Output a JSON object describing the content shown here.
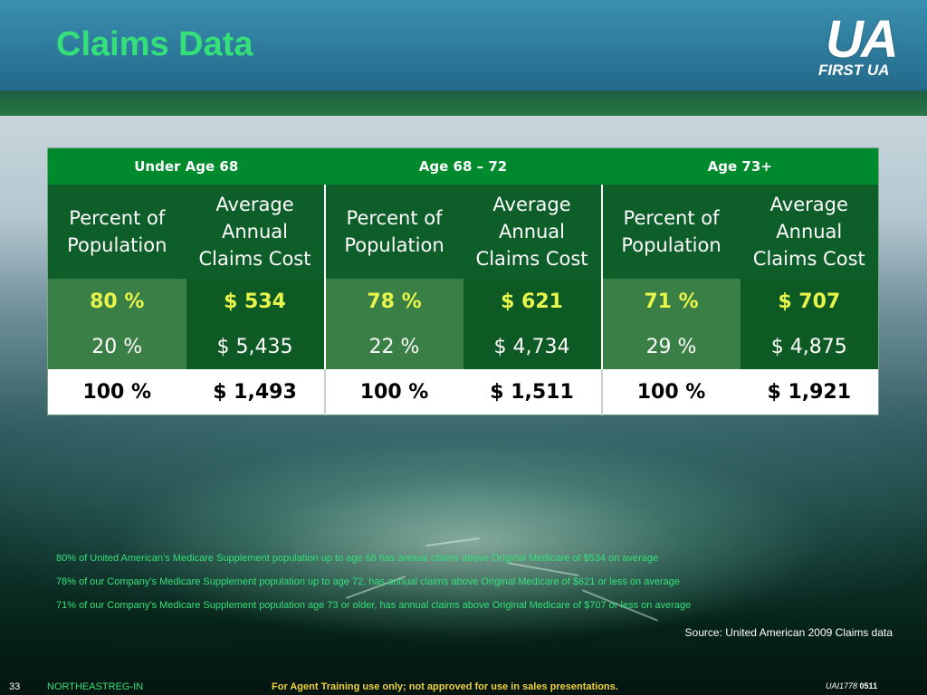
{
  "slide": {
    "title": "Claims Data",
    "logo": {
      "main": "UA",
      "sub": "FIRST UA"
    }
  },
  "table": {
    "groups": [
      "Under Age 68",
      "Age 68 – 72",
      "Age 73+"
    ],
    "subheaders": {
      "percent": [
        "Percent of",
        "Population"
      ],
      "cost": [
        "Average",
        "Annual",
        "Claims Cost"
      ]
    },
    "rows": [
      {
        "cells": [
          "80 %",
          "$ 534",
          "78 %",
          "$ 621",
          "71 %",
          "$ 707"
        ]
      },
      {
        "cells": [
          "20 %",
          "$ 5,435",
          "22 %",
          "$ 4,734",
          "29 %",
          "$ 4,875"
        ]
      },
      {
        "cells": [
          "100 %",
          "$ 1,493",
          "100 %",
          "$ 1,511",
          "100 %",
          "$ 1,921"
        ]
      }
    ]
  },
  "notes": [
    "80% of United American’s Medicare Supplement population up to age 68 has annual claims above Original Medicare of $534 on average",
    "78% of our Company’s Medicare Supplement population up to age 72, has annual claims above Original Medicare of $621 or less on average",
    "71% of our Company’s Medicare Supplement population age 73 or older, has annual claims above Original Medicare of $707 or less on average"
  ],
  "source": "Source: United American 2009 Claims data",
  "footer": {
    "page_number": "33",
    "region": "NORTHEASTREG-IN",
    "notice": "For Agent Training use only; not approved for use in sales presentations.",
    "code_italic": "UAI1778",
    "code_bold": "0511"
  },
  "colors": {
    "title_green": "#35e07a",
    "header_green": "#008a2e",
    "dark_green": "#0e5a24",
    "highlight_yellow": "#e8f54a",
    "notice_yellow": "#f1d23a"
  }
}
